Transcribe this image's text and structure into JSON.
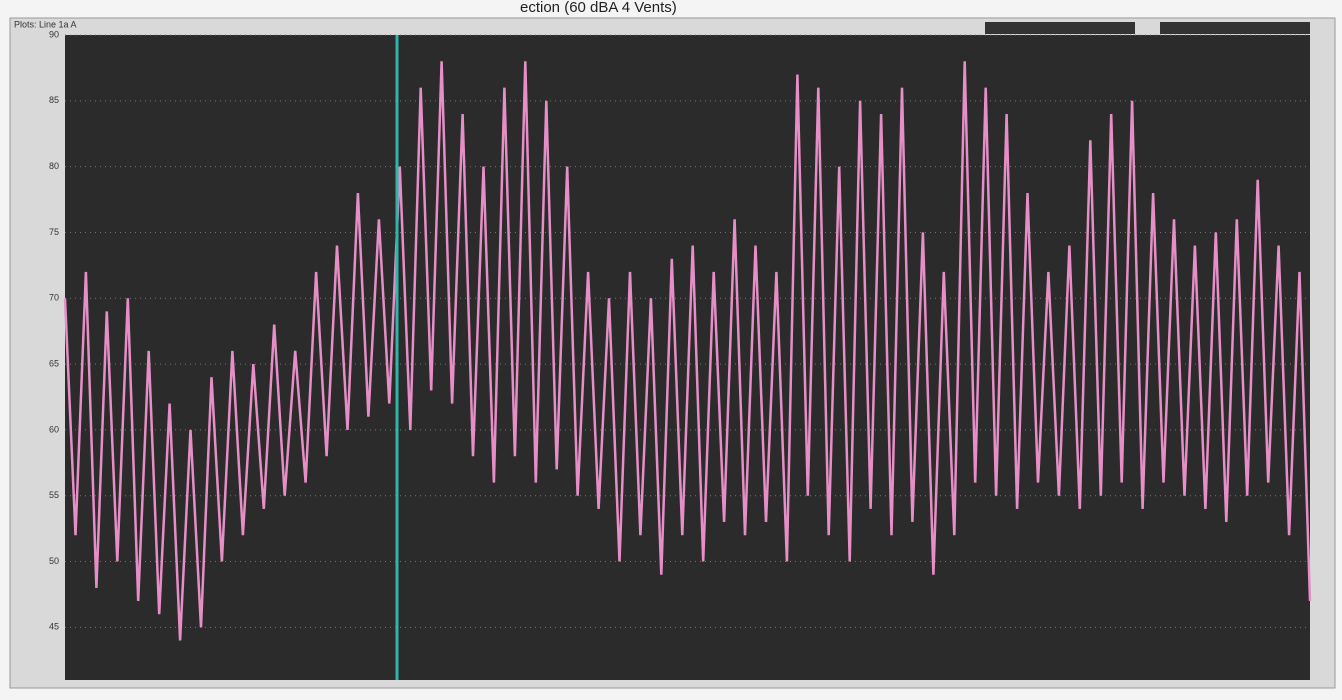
{
  "chart_data": {
    "type": "line",
    "title": "ection (60 dBA 4 Vents)",
    "subtitle": "Plots: Line 1a A",
    "series": [
      {
        "name": "Line 1a",
        "color": "#e58fc6",
        "values": [
          70,
          52,
          72,
          48,
          69,
          50,
          70,
          47,
          66,
          46,
          62,
          44,
          60,
          45,
          64,
          50,
          66,
          52,
          65,
          54,
          68,
          55,
          66,
          56,
          72,
          58,
          74,
          60,
          78,
          61,
          76,
          62,
          80,
          60,
          86,
          63,
          88,
          62,
          84,
          58,
          80,
          56,
          86,
          58,
          88,
          56,
          85,
          57,
          80,
          55,
          72,
          54,
          70,
          50,
          72,
          52,
          70,
          49,
          73,
          52,
          74,
          50,
          72,
          53,
          76,
          52,
          74,
          53,
          72,
          50,
          87,
          55,
          86,
          52,
          80,
          50,
          85,
          54,
          84,
          52,
          86,
          53,
          75,
          49,
          72,
          52,
          88,
          56,
          86,
          55,
          84,
          54,
          78,
          56,
          72,
          55,
          74,
          54,
          82,
          55,
          84,
          56,
          85,
          54,
          78,
          56,
          76,
          55,
          74,
          54,
          75,
          53,
          76,
          55,
          79,
          56,
          74,
          52,
          72,
          47
        ]
      }
    ],
    "ylim": [
      41,
      90
    ],
    "yticks": [
      45,
      50,
      55,
      60,
      65,
      70,
      75,
      80,
      85,
      90
    ],
    "grid": true
  }
}
